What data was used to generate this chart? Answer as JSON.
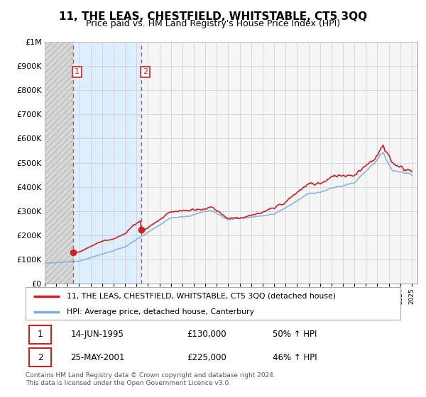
{
  "title": "11, THE LEAS, CHESTFIELD, WHITSTABLE, CT5 3QQ",
  "subtitle": "Price paid vs. HM Land Registry's House Price Index (HPI)",
  "footer": "Contains HM Land Registry data © Crown copyright and database right 2024.\nThis data is licensed under the Open Government Licence v3.0.",
  "legend_line1": "11, THE LEAS, CHESTFIELD, WHITSTABLE, CT5 3QQ (detached house)",
  "legend_line2": "HPI: Average price, detached house, Canterbury",
  "sale1_date": "14-JUN-1995",
  "sale1_price": "£130,000",
  "sale1_hpi": "50% ↑ HPI",
  "sale2_date": "25-MAY-2001",
  "sale2_price": "£225,000",
  "sale2_hpi": "46% ↑ HPI",
  "sale1_year": 1995.45,
  "sale1_value": 130000,
  "sale2_year": 2001.39,
  "sale2_value": 225000,
  "price_line_color": "#cc2222",
  "hpi_line_color": "#7aabdd",
  "vline_color": "#dd4444",
  "sale_marker_color": "#cc2222",
  "ylim_max": 1000000,
  "xmin": 1993,
  "xmax": 2025.5,
  "yticks": [
    0,
    100000,
    200000,
    300000,
    400000,
    500000,
    600000,
    700000,
    800000,
    900000,
    1000000
  ]
}
